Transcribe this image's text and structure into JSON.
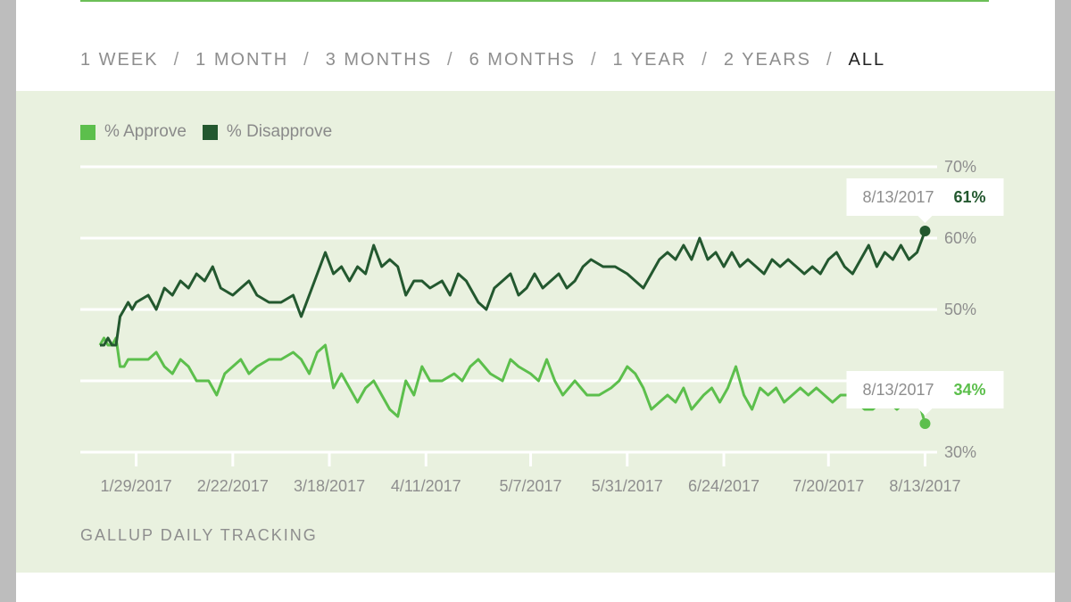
{
  "range_options": [
    {
      "label": "1 WEEK",
      "active": false
    },
    {
      "label": "1 MONTH",
      "active": false
    },
    {
      "label": "3 MONTHS",
      "active": false
    },
    {
      "label": "6 MONTHS",
      "active": false
    },
    {
      "label": "1 YEAR",
      "active": false
    },
    {
      "label": "2 YEARS",
      "active": false
    },
    {
      "label": "ALL",
      "active": true
    }
  ],
  "range_separator": "/",
  "footer": "GALLUP DAILY TRACKING",
  "colors": {
    "approve": "#5cbf4c",
    "disapprove": "#23582f",
    "grid": "#ffffff",
    "panel": "#e9f1df"
  },
  "legend": [
    {
      "label": "% Approve",
      "series": "approve"
    },
    {
      "label": "% Disapprove",
      "series": "disapprove"
    }
  ],
  "callouts": [
    {
      "series": "disapprove",
      "date": "8/13/2017",
      "value_label": "61%"
    },
    {
      "series": "approve",
      "date": "8/13/2017",
      "value_label": "34%"
    }
  ],
  "chart_data": {
    "type": "line",
    "title": "",
    "xlabel": "",
    "ylabel": "",
    "x_start": "1/20/2017",
    "x_end": "8/13/2017",
    "x_ticks": [
      "1/29/2017",
      "2/22/2017",
      "3/18/2017",
      "4/11/2017",
      "5/7/2017",
      "5/31/2017",
      "6/24/2017",
      "7/20/2017",
      "8/13/2017"
    ],
    "y_ticks": [
      30,
      40,
      50,
      60,
      70
    ],
    "y_tick_labels": [
      "30%",
      "40%",
      "50%",
      "60%",
      "70%"
    ],
    "ylim": [
      30,
      70
    ],
    "series": [
      {
        "name": "% Approve",
        "key": "approve",
        "points": [
          [
            "1/20/2017",
            45
          ],
          [
            "1/21/2017",
            46
          ],
          [
            "1/22/2017",
            45
          ],
          [
            "1/23/2017",
            45
          ],
          [
            "1/24/2017",
            46
          ],
          [
            "1/25/2017",
            42
          ],
          [
            "1/26/2017",
            42
          ],
          [
            "1/27/2017",
            43
          ],
          [
            "1/28/2017",
            43
          ],
          [
            "1/29/2017",
            43
          ],
          [
            "2/1/2017",
            43
          ],
          [
            "2/3/2017",
            44
          ],
          [
            "2/5/2017",
            42
          ],
          [
            "2/7/2017",
            41
          ],
          [
            "2/9/2017",
            43
          ],
          [
            "2/11/2017",
            42
          ],
          [
            "2/13/2017",
            40
          ],
          [
            "2/16/2017",
            40
          ],
          [
            "2/18/2017",
            38
          ],
          [
            "2/20/2017",
            41
          ],
          [
            "2/22/2017",
            42
          ],
          [
            "2/24/2017",
            43
          ],
          [
            "2/26/2017",
            41
          ],
          [
            "2/28/2017",
            42
          ],
          [
            "3/3/2017",
            43
          ],
          [
            "3/6/2017",
            43
          ],
          [
            "3/9/2017",
            44
          ],
          [
            "3/11/2017",
            43
          ],
          [
            "3/13/2017",
            41
          ],
          [
            "3/15/2017",
            44
          ],
          [
            "3/17/2017",
            45
          ],
          [
            "3/19/2017",
            39
          ],
          [
            "3/21/2017",
            41
          ],
          [
            "3/23/2017",
            39
          ],
          [
            "3/25/2017",
            37
          ],
          [
            "3/27/2017",
            39
          ],
          [
            "3/29/2017",
            40
          ],
          [
            "3/31/2017",
            38
          ],
          [
            "4/2/2017",
            36
          ],
          [
            "4/4/2017",
            35
          ],
          [
            "4/6/2017",
            40
          ],
          [
            "4/8/2017",
            38
          ],
          [
            "4/10/2017",
            42
          ],
          [
            "4/12/2017",
            40
          ],
          [
            "4/15/2017",
            40
          ],
          [
            "4/18/2017",
            41
          ],
          [
            "4/20/2017",
            40
          ],
          [
            "4/22/2017",
            42
          ],
          [
            "4/24/2017",
            43
          ],
          [
            "4/27/2017",
            41
          ],
          [
            "4/30/2017",
            40
          ],
          [
            "5/2/2017",
            43
          ],
          [
            "5/4/2017",
            42
          ],
          [
            "5/7/2017",
            41
          ],
          [
            "5/9/2017",
            40
          ],
          [
            "5/11/2017",
            43
          ],
          [
            "5/13/2017",
            40
          ],
          [
            "5/15/2017",
            38
          ],
          [
            "5/18/2017",
            40
          ],
          [
            "5/21/2017",
            38
          ],
          [
            "5/24/2017",
            38
          ],
          [
            "5/27/2017",
            39
          ],
          [
            "5/29/2017",
            40
          ],
          [
            "5/31/2017",
            42
          ],
          [
            "6/2/2017",
            41
          ],
          [
            "6/4/2017",
            39
          ],
          [
            "6/6/2017",
            36
          ],
          [
            "6/8/2017",
            37
          ],
          [
            "6/10/2017",
            38
          ],
          [
            "6/12/2017",
            37
          ],
          [
            "6/14/2017",
            39
          ],
          [
            "6/16/2017",
            36
          ],
          [
            "6/19/2017",
            38
          ],
          [
            "6/21/2017",
            39
          ],
          [
            "6/23/2017",
            37
          ],
          [
            "6/25/2017",
            39
          ],
          [
            "6/27/2017",
            42
          ],
          [
            "6/29/2017",
            38
          ],
          [
            "7/1/2017",
            36
          ],
          [
            "7/3/2017",
            39
          ],
          [
            "7/5/2017",
            38
          ],
          [
            "7/7/2017",
            39
          ],
          [
            "7/9/2017",
            37
          ],
          [
            "7/11/2017",
            38
          ],
          [
            "7/13/2017",
            39
          ],
          [
            "7/15/2017",
            38
          ],
          [
            "7/17/2017",
            39
          ],
          [
            "7/19/2017",
            38
          ],
          [
            "7/21/2017",
            37
          ],
          [
            "7/23/2017",
            38
          ],
          [
            "7/25/2017",
            38
          ],
          [
            "7/27/2017",
            37
          ],
          [
            "7/29/2017",
            36
          ],
          [
            "7/31/2017",
            36
          ],
          [
            "8/2/2017",
            37
          ],
          [
            "8/4/2017",
            37
          ],
          [
            "8/6/2017",
            36
          ],
          [
            "8/8/2017",
            37
          ],
          [
            "8/10/2017",
            37
          ],
          [
            "8/12/2017",
            36
          ],
          [
            "8/13/2017",
            34
          ]
        ]
      },
      {
        "name": "% Disapprove",
        "key": "disapprove",
        "points": [
          [
            "1/20/2017",
            45
          ],
          [
            "1/21/2017",
            45
          ],
          [
            "1/22/2017",
            46
          ],
          [
            "1/23/2017",
            45
          ],
          [
            "1/24/2017",
            45
          ],
          [
            "1/25/2017",
            49
          ],
          [
            "1/26/2017",
            50
          ],
          [
            "1/27/2017",
            51
          ],
          [
            "1/28/2017",
            50
          ],
          [
            "1/29/2017",
            51
          ],
          [
            "2/1/2017",
            52
          ],
          [
            "2/3/2017",
            50
          ],
          [
            "2/5/2017",
            53
          ],
          [
            "2/7/2017",
            52
          ],
          [
            "2/9/2017",
            54
          ],
          [
            "2/11/2017",
            53
          ],
          [
            "2/13/2017",
            55
          ],
          [
            "2/15/2017",
            54
          ],
          [
            "2/17/2017",
            56
          ],
          [
            "2/19/2017",
            53
          ],
          [
            "2/22/2017",
            52
          ],
          [
            "2/24/2017",
            53
          ],
          [
            "2/26/2017",
            54
          ],
          [
            "2/28/2017",
            52
          ],
          [
            "3/3/2017",
            51
          ],
          [
            "3/6/2017",
            51
          ],
          [
            "3/9/2017",
            52
          ],
          [
            "3/11/2017",
            49
          ],
          [
            "3/13/2017",
            52
          ],
          [
            "3/15/2017",
            55
          ],
          [
            "3/17/2017",
            58
          ],
          [
            "3/19/2017",
            55
          ],
          [
            "3/21/2017",
            56
          ],
          [
            "3/23/2017",
            54
          ],
          [
            "3/25/2017",
            56
          ],
          [
            "3/27/2017",
            55
          ],
          [
            "3/29/2017",
            59
          ],
          [
            "3/31/2017",
            56
          ],
          [
            "4/2/2017",
            57
          ],
          [
            "4/4/2017",
            56
          ],
          [
            "4/6/2017",
            52
          ],
          [
            "4/8/2017",
            54
          ],
          [
            "4/10/2017",
            54
          ],
          [
            "4/12/2017",
            53
          ],
          [
            "4/15/2017",
            54
          ],
          [
            "4/17/2017",
            52
          ],
          [
            "4/19/2017",
            55
          ],
          [
            "4/21/2017",
            54
          ],
          [
            "4/24/2017",
            51
          ],
          [
            "4/26/2017",
            50
          ],
          [
            "4/28/2017",
            53
          ],
          [
            "4/30/2017",
            54
          ],
          [
            "5/2/2017",
            55
          ],
          [
            "5/4/2017",
            52
          ],
          [
            "5/6/2017",
            53
          ],
          [
            "5/8/2017",
            55
          ],
          [
            "5/10/2017",
            53
          ],
          [
            "5/12/2017",
            54
          ],
          [
            "5/14/2017",
            55
          ],
          [
            "5/16/2017",
            53
          ],
          [
            "5/18/2017",
            54
          ],
          [
            "5/20/2017",
            56
          ],
          [
            "5/22/2017",
            57
          ],
          [
            "5/25/2017",
            56
          ],
          [
            "5/28/2017",
            56
          ],
          [
            "5/31/2017",
            55
          ],
          [
            "6/2/2017",
            54
          ],
          [
            "6/4/2017",
            53
          ],
          [
            "6/6/2017",
            55
          ],
          [
            "6/8/2017",
            57
          ],
          [
            "6/10/2017",
            58
          ],
          [
            "6/12/2017",
            57
          ],
          [
            "6/14/2017",
            59
          ],
          [
            "6/16/2017",
            57
          ],
          [
            "6/18/2017",
            60
          ],
          [
            "6/20/2017",
            57
          ],
          [
            "6/22/2017",
            58
          ],
          [
            "6/24/2017",
            56
          ],
          [
            "6/26/2017",
            58
          ],
          [
            "6/28/2017",
            56
          ],
          [
            "6/30/2017",
            57
          ],
          [
            "7/2/2017",
            56
          ],
          [
            "7/4/2017",
            55
          ],
          [
            "7/6/2017",
            57
          ],
          [
            "7/8/2017",
            56
          ],
          [
            "7/10/2017",
            57
          ],
          [
            "7/12/2017",
            56
          ],
          [
            "7/14/2017",
            55
          ],
          [
            "7/16/2017",
            56
          ],
          [
            "7/18/2017",
            55
          ],
          [
            "7/20/2017",
            57
          ],
          [
            "7/22/2017",
            58
          ],
          [
            "7/24/2017",
            56
          ],
          [
            "7/26/2017",
            55
          ],
          [
            "7/28/2017",
            57
          ],
          [
            "7/30/2017",
            59
          ],
          [
            "8/1/2017",
            56
          ],
          [
            "8/3/2017",
            58
          ],
          [
            "8/5/2017",
            57
          ],
          [
            "8/7/2017",
            59
          ],
          [
            "8/9/2017",
            57
          ],
          [
            "8/11/2017",
            58
          ],
          [
            "8/13/2017",
            61
          ]
        ]
      }
    ]
  }
}
